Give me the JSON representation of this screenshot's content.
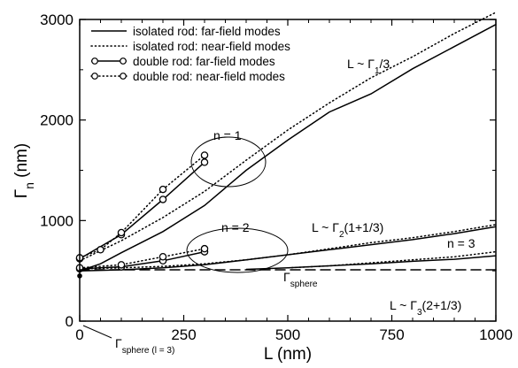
{
  "chart_data": {
    "type": "line",
    "xlabel": "L (nm)",
    "ylabel": {
      "main": "Γ",
      "sub": "n",
      "unit": " (nm)"
    },
    "xlim": [
      0,
      1000
    ],
    "ylim": [
      0,
      3000
    ],
    "xticks": [
      0,
      250,
      500,
      750,
      1000
    ],
    "yticks": [
      0,
      1000,
      2000,
      3000
    ],
    "xtick_labels": [
      "0",
      "250",
      "500",
      "750",
      "1000"
    ],
    "ytick_labels": [
      "0",
      "1000",
      "2000",
      "3000"
    ],
    "grid": false,
    "legend_position": "top-left",
    "series": [
      {
        "name": "isolated rod: far-field modes",
        "style": "solid",
        "x": [
          0,
          50,
          100,
          200,
          300,
          400,
          500,
          600,
          700,
          800,
          900,
          1000
        ],
        "y": [
          500,
          570,
          680,
          890,
          1150,
          1500,
          1800,
          2080,
          2260,
          2510,
          2730,
          2950
        ]
      },
      {
        "name": "isolated rod: near-field modes",
        "style": "dotted",
        "x": [
          0,
          50,
          100,
          200,
          300,
          400,
          500,
          600,
          700,
          800,
          900,
          1000
        ],
        "y": [
          600,
          700,
          800,
          1030,
          1290,
          1600,
          1900,
          2170,
          2420,
          2630,
          2860,
          3070
        ]
      },
      {
        "name": "isolated rod: far-field modes",
        "style": "solid",
        "x": [
          0,
          100,
          200,
          300,
          400,
          500,
          600,
          700,
          800,
          900,
          1000
        ],
        "y": [
          500,
          510,
          530,
          560,
          610,
          660,
          710,
          760,
          810,
          870,
          940
        ]
      },
      {
        "name": "isolated rod: near-field modes",
        "style": "dotted",
        "x": [
          0,
          100,
          200,
          300,
          400,
          500,
          600,
          700,
          800,
          900,
          1000
        ],
        "y": [
          520,
          530,
          545,
          570,
          610,
          660,
          720,
          780,
          830,
          890,
          960
        ]
      },
      {
        "name": "isolated rod: far-field modes",
        "style": "solid",
        "x": [
          400,
          500,
          600,
          700,
          800,
          900,
          1000
        ],
        "y": [
          515,
          530,
          550,
          570,
          595,
          615,
          650
        ]
      },
      {
        "name": "isolated rod: near-field modes",
        "style": "dotted",
        "x": [
          500,
          600,
          700,
          800,
          900,
          1000
        ],
        "y": [
          530,
          550,
          580,
          610,
          640,
          690
        ]
      },
      {
        "name": "double rod: far-field modes",
        "style": "solid-circle",
        "x": [
          0,
          100,
          200,
          300
        ],
        "y": [
          620,
          860,
          1210,
          1580
        ]
      },
      {
        "name": "double rod: near-field modes",
        "style": "dotted-circle",
        "x": [
          0,
          50,
          100,
          200,
          300
        ],
        "y": [
          630,
          710,
          880,
          1310,
          1650
        ]
      },
      {
        "name": "double rod: far-field modes",
        "style": "solid-circle",
        "x": [
          0,
          100,
          200,
          300
        ],
        "y": [
          520,
          540,
          600,
          690
        ]
      },
      {
        "name": "double rod: near-field modes",
        "style": "dotted-circle",
        "x": [
          0,
          100,
          200,
          300
        ],
        "y": [
          530,
          560,
          640,
          720
        ]
      },
      {
        "name": "Γsphere",
        "style": "dashed",
        "x": [
          0,
          1000
        ],
        "y": [
          510,
          510
        ]
      },
      {
        "name": "Γsphere (l = 3)",
        "style": "point",
        "x": [
          0
        ],
        "y": [
          450
        ]
      }
    ],
    "annotations": [
      {
        "id": "L1",
        "parts": [
          "L ~ Γ",
          "1",
          "/3"
        ]
      },
      {
        "id": "L2",
        "parts": [
          "L ~ Γ",
          "2",
          "(1+1/3)"
        ]
      },
      {
        "id": "L3",
        "parts": [
          "L ~ Γ",
          "3",
          "(2+1/3)"
        ]
      },
      {
        "id": "n1",
        "parts": [
          "n = 1"
        ]
      },
      {
        "id": "n2",
        "parts": [
          "n = 2"
        ]
      },
      {
        "id": "n3",
        "parts": [
          "n = 3"
        ]
      },
      {
        "id": "gs",
        "parts": [
          "Γ",
          "sphere"
        ]
      },
      {
        "id": "gs3",
        "parts": [
          "Γ",
          "sphere (l = 3)"
        ]
      }
    ]
  }
}
